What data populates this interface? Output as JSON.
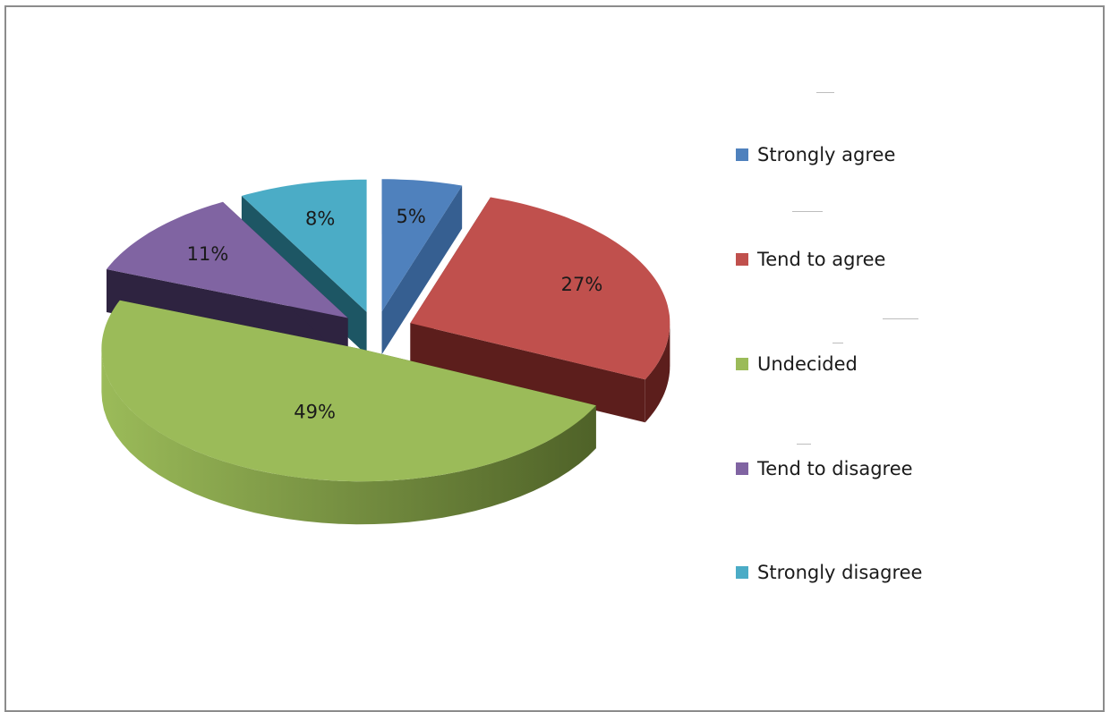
{
  "chart_data": {
    "type": "pie",
    "style": "3d-exploded",
    "title": "",
    "legend_position": "right",
    "slices": [
      {
        "label": "Strongly agree",
        "value": 5,
        "display": "5%",
        "color": "#4F81BD",
        "side_color": "#365F91"
      },
      {
        "label": "Tend to agree",
        "value": 27,
        "display": "27%",
        "color": "#C0504D",
        "side_color": "#5C1E1C"
      },
      {
        "label": "Undecided",
        "value": 49,
        "display": "49%",
        "color": "#9BBB59",
        "side_color": "#4F6228"
      },
      {
        "label": "Tend to disagree",
        "value": 11,
        "display": "11%",
        "color": "#8064A2",
        "side_color": "#2E2340"
      },
      {
        "label": "Strongly disagree",
        "value": 8,
        "display": "8%",
        "color": "#4BACC6",
        "side_color": "#1D5664"
      }
    ]
  }
}
